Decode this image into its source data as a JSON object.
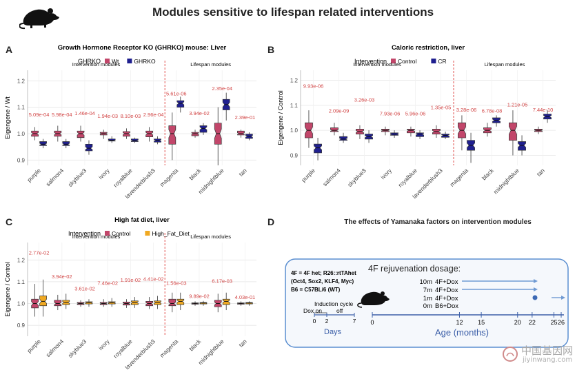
{
  "header": {
    "title": "Modules sensitive to lifespan related interventions"
  },
  "panels": {
    "A": {
      "letter": "A"
    },
    "B": {
      "letter": "B"
    },
    "C": {
      "letter": "C"
    },
    "D": {
      "letter": "D"
    }
  },
  "colors": {
    "control": "#c2466a",
    "pvalue": "#d24545",
    "divider": "#e0524f",
    "box_edge": "#333333",
    "grid": "#e6e6e6",
    "panel_bg": "#ffffff",
    "diagram_border": "#5a8ed0",
    "diagram_bg": "#f5f8fc",
    "arrow": "#6f9ad3",
    "age_text": "#3c5fa8"
  },
  "chart_data": [
    {
      "id": "A",
      "type": "boxplot",
      "title": "Growth Hormone Receptor KO (GHRKO) mouse: Liver",
      "legend_title": "GHRKO",
      "legend_position": "top",
      "ylabel": "Eigengene / Wt",
      "xlabel": "",
      "ylim": [
        0.88,
        1.24
      ],
      "yticks": [
        0.9,
        1.0,
        1.1,
        1.2
      ],
      "group_labels": [
        "Intervention modules",
        "Lifespan modules"
      ],
      "split_after": 6,
      "categories": [
        "purple",
        "salmon4",
        "skyblue3",
        "ivory",
        "royalblue",
        "lavenderblush3",
        "magenta",
        "black",
        "midnightblue",
        "tan"
      ],
      "pvalues": [
        "5.09e-04",
        "5.98e-04",
        "1.46e-04",
        "1.94e-03",
        "8.10e-03",
        "2.96e-04",
        "5.61e-06",
        "3.94e-02",
        "2.35e-04",
        "2.39e-01"
      ],
      "pvalue_y": [
        1.065,
        1.065,
        1.07,
        1.06,
        1.06,
        1.065,
        1.145,
        1.07,
        1.165,
        1.055
      ],
      "series": [
        {
          "name": "Wt",
          "color": "#c2466a",
          "boxes": [
            [
              0.975,
              0.99,
              1.0,
              1.01,
              1.025
            ],
            [
              0.97,
              0.99,
              1.0,
              1.01,
              1.03
            ],
            [
              0.97,
              0.985,
              1.0,
              1.01,
              1.03
            ],
            [
              0.98,
              0.995,
              1.0,
              1.005,
              1.015
            ],
            [
              0.98,
              0.99,
              1.0,
              1.008,
              1.02
            ],
            [
              0.97,
              0.988,
              1.0,
              1.01,
              1.025
            ],
            [
              0.9,
              0.96,
              1.0,
              1.03,
              1.08
            ],
            [
              0.985,
              0.992,
              1.0,
              1.005,
              1.015
            ],
            [
              0.88,
              0.96,
              1.0,
              1.04,
              1.1
            ],
            [
              0.985,
              0.995,
              1.0,
              1.01,
              1.015
            ]
          ]
        },
        {
          "name": "GHRKO",
          "color": "#1f1f8f",
          "boxes": [
            [
              0.945,
              0.955,
              0.96,
              0.97,
              0.98
            ],
            [
              0.945,
              0.955,
              0.96,
              0.97,
              0.98
            ],
            [
              0.92,
              0.935,
              0.945,
              0.96,
              0.975
            ],
            [
              0.965,
              0.972,
              0.975,
              0.98,
              0.99
            ],
            [
              0.965,
              0.97,
              0.975,
              0.98,
              0.985
            ],
            [
              0.96,
              0.968,
              0.975,
              0.98,
              0.99
            ],
            [
              1.08,
              1.1,
              1.115,
              1.125,
              1.14
            ],
            [
              0.995,
              1.005,
              1.02,
              1.03,
              1.04
            ],
            [
              1.05,
              1.09,
              1.11,
              1.13,
              1.155
            ],
            [
              0.975,
              0.982,
              0.99,
              0.998,
              1.005
            ]
          ]
        }
      ]
    },
    {
      "id": "B",
      "type": "boxplot",
      "title": "Caloric restriction, liver",
      "legend_title": "Intervention",
      "legend_position": "top",
      "ylabel": "Eigengene / Control",
      "xlabel": "",
      "ylim": [
        0.86,
        1.24
      ],
      "yticks": [
        0.9,
        1.0,
        1.1,
        1.2
      ],
      "group_labels": [
        "Intervention modules",
        "Lifespan modules"
      ],
      "split_after": 6,
      "categories": [
        "purple",
        "salmon4",
        "skyblue3",
        "ivory",
        "royalblue",
        "lavenderblush3",
        "magenta",
        "black",
        "midnightblue",
        "tan"
      ],
      "pvalues": [
        "9.93e-06",
        "2.09e-09",
        "3.26e-03",
        "7.93e-06",
        "5.96e-06",
        "1.35e-05",
        "3.28e-06",
        "6.78e-08",
        "1.21e-05",
        "7.44e-10"
      ],
      "pvalue_y": [
        1.17,
        1.07,
        1.115,
        1.06,
        1.06,
        1.085,
        1.075,
        1.07,
        1.095,
        1.075
      ],
      "series": [
        {
          "name": "Control",
          "color": "#c2466a",
          "boxes": [
            [
              0.93,
              0.97,
              1.0,
              1.03,
              1.08
            ],
            [
              0.98,
              0.995,
              1.0,
              1.01,
              1.03
            ],
            [
              0.965,
              0.985,
              0.995,
              1.005,
              1.02
            ],
            [
              0.98,
              0.995,
              1.0,
              1.005,
              1.015
            ],
            [
              0.975,
              0.99,
              1.0,
              1.005,
              1.015
            ],
            [
              0.97,
              0.985,
              0.995,
              1.005,
              1.02
            ],
            [
              0.92,
              0.97,
              1.0,
              1.03,
              1.06
            ],
            [
              0.975,
              0.99,
              1.0,
              1.01,
              1.03
            ],
            [
              0.9,
              0.96,
              1.0,
              1.03,
              1.08
            ],
            [
              0.985,
              0.995,
              1.0,
              1.005,
              1.015
            ]
          ]
        },
        {
          "name": "CR",
          "color": "#1f1f8f",
          "boxes": [
            [
              0.88,
              0.91,
              0.93,
              0.945,
              0.97
            ],
            [
              0.95,
              0.96,
              0.965,
              0.975,
              0.99
            ],
            [
              0.95,
              0.965,
              0.975,
              0.985,
              1.0
            ],
            [
              0.97,
              0.98,
              0.985,
              0.99,
              1.0
            ],
            [
              0.965,
              0.975,
              0.985,
              0.99,
              1.0
            ],
            [
              0.965,
              0.972,
              0.98,
              0.985,
              0.995
            ],
            [
              0.87,
              0.92,
              0.94,
              0.96,
              0.99
            ],
            [
              1.015,
              1.03,
              1.04,
              1.05,
              1.06
            ],
            [
              0.9,
              0.92,
              0.94,
              0.955,
              0.98
            ],
            [
              1.03,
              1.045,
              1.055,
              1.065,
              1.08
            ]
          ]
        }
      ]
    },
    {
      "id": "C",
      "type": "boxplot",
      "title": "High fat diet, liver",
      "legend_title": "Intervention",
      "legend_position": "top",
      "ylabel": "Eigengene / Control",
      "xlabel": "",
      "ylim": [
        0.85,
        1.28
      ],
      "yticks": [
        0.9,
        1.0,
        1.1,
        1.2
      ],
      "group_labels": [
        "Intervention modules",
        "Lifespan modules"
      ],
      "split_after": 6,
      "categories": [
        "purple",
        "salmon4",
        "skyblue3",
        "ivory",
        "royalblue",
        "lavenderblush3",
        "magenta",
        "black",
        "midnightblue",
        "tan"
      ],
      "pvalues": [
        "2.77e-02",
        "3.94e-02",
        "3.61e-02",
        "7.46e-02",
        "1.91e-02",
        "4.41e-02",
        "1.56e-03",
        "9.89e-02",
        "6.17e-03",
        "4.03e-01"
      ],
      "pvalue_y": [
        1.225,
        1.115,
        1.06,
        1.085,
        1.1,
        1.105,
        1.085,
        1.025,
        1.095,
        1.02
      ],
      "series": [
        {
          "name": "Control",
          "color": "#c2466a",
          "boxes": [
            [
              0.94,
              0.98,
              1.0,
              1.02,
              1.09
            ],
            [
              0.97,
              0.99,
              1.0,
              1.015,
              1.04
            ],
            [
              0.985,
              0.995,
              1.0,
              1.005,
              1.015
            ],
            [
              0.985,
              0.995,
              1.0,
              1.005,
              1.02
            ],
            [
              0.98,
              0.993,
              1.0,
              1.007,
              1.02
            ],
            [
              0.975,
              0.99,
              1.0,
              1.01,
              1.03
            ],
            [
              0.96,
              0.99,
              1.0,
              1.02,
              1.05
            ],
            [
              0.99,
              0.997,
              1.0,
              1.003,
              1.01
            ],
            [
              0.96,
              0.985,
              1.0,
              1.015,
              1.045
            ],
            [
              0.99,
              0.997,
              1.0,
              1.003,
              1.01
            ]
          ]
        },
        {
          "name": "High_Fat_Diet",
          "color": "#f0a922",
          "boxes": [
            [
              0.94,
              0.99,
              1.01,
              1.035,
              1.11
            ],
            [
              0.975,
              0.995,
              1.005,
              1.015,
              1.045
            ],
            [
              0.985,
              0.998,
              1.003,
              1.008,
              1.02
            ],
            [
              0.985,
              0.998,
              1.003,
              1.008,
              1.025
            ],
            [
              0.98,
              0.995,
              1.005,
              1.012,
              1.03
            ],
            [
              0.975,
              0.995,
              1.005,
              1.012,
              1.035
            ],
            [
              0.97,
              0.995,
              1.01,
              1.02,
              1.05
            ],
            [
              0.99,
              0.998,
              1.002,
              1.005,
              1.012
            ],
            [
              0.97,
              0.995,
              1.01,
              1.02,
              1.05
            ],
            [
              0.99,
              0.998,
              1.002,
              1.005,
              1.01
            ]
          ]
        }
      ]
    }
  ],
  "diagram_d": {
    "title": "The effects of Yamanaka factors on intervention modules",
    "legend_lines": [
      "4F = 4F het; R26::rtTAhet",
      "(Oct4, Sox2, KLF4, Myc)",
      "B6 =  C57BL/6 (WT)"
    ],
    "dosage_title": "4F rejuvenation dosage:",
    "doses": [
      {
        "time": "10m",
        "treat": "4F+Dox"
      },
      {
        "time": "7m",
        "treat": "4F+Dox"
      },
      {
        "time": "1m",
        "treat": "4F+Dox"
      },
      {
        "time": "0m",
        "treat": "B6+Dox"
      }
    ],
    "induction_label": "Induction cycle",
    "dox_on": "Dox on",
    "dox_off": "off",
    "days_ticks": [
      "0",
      "2",
      "7"
    ],
    "days_label": "Days",
    "age_ticks": [
      "0",
      "12",
      "15",
      "20",
      "22",
      "25",
      "26"
    ],
    "age_values": [
      0,
      12,
      15,
      20,
      22,
      25,
      26
    ],
    "age_label": "Age (months)"
  },
  "watermark": {
    "line1": "中国基因网",
    "line2": "jiyinwang.com"
  }
}
